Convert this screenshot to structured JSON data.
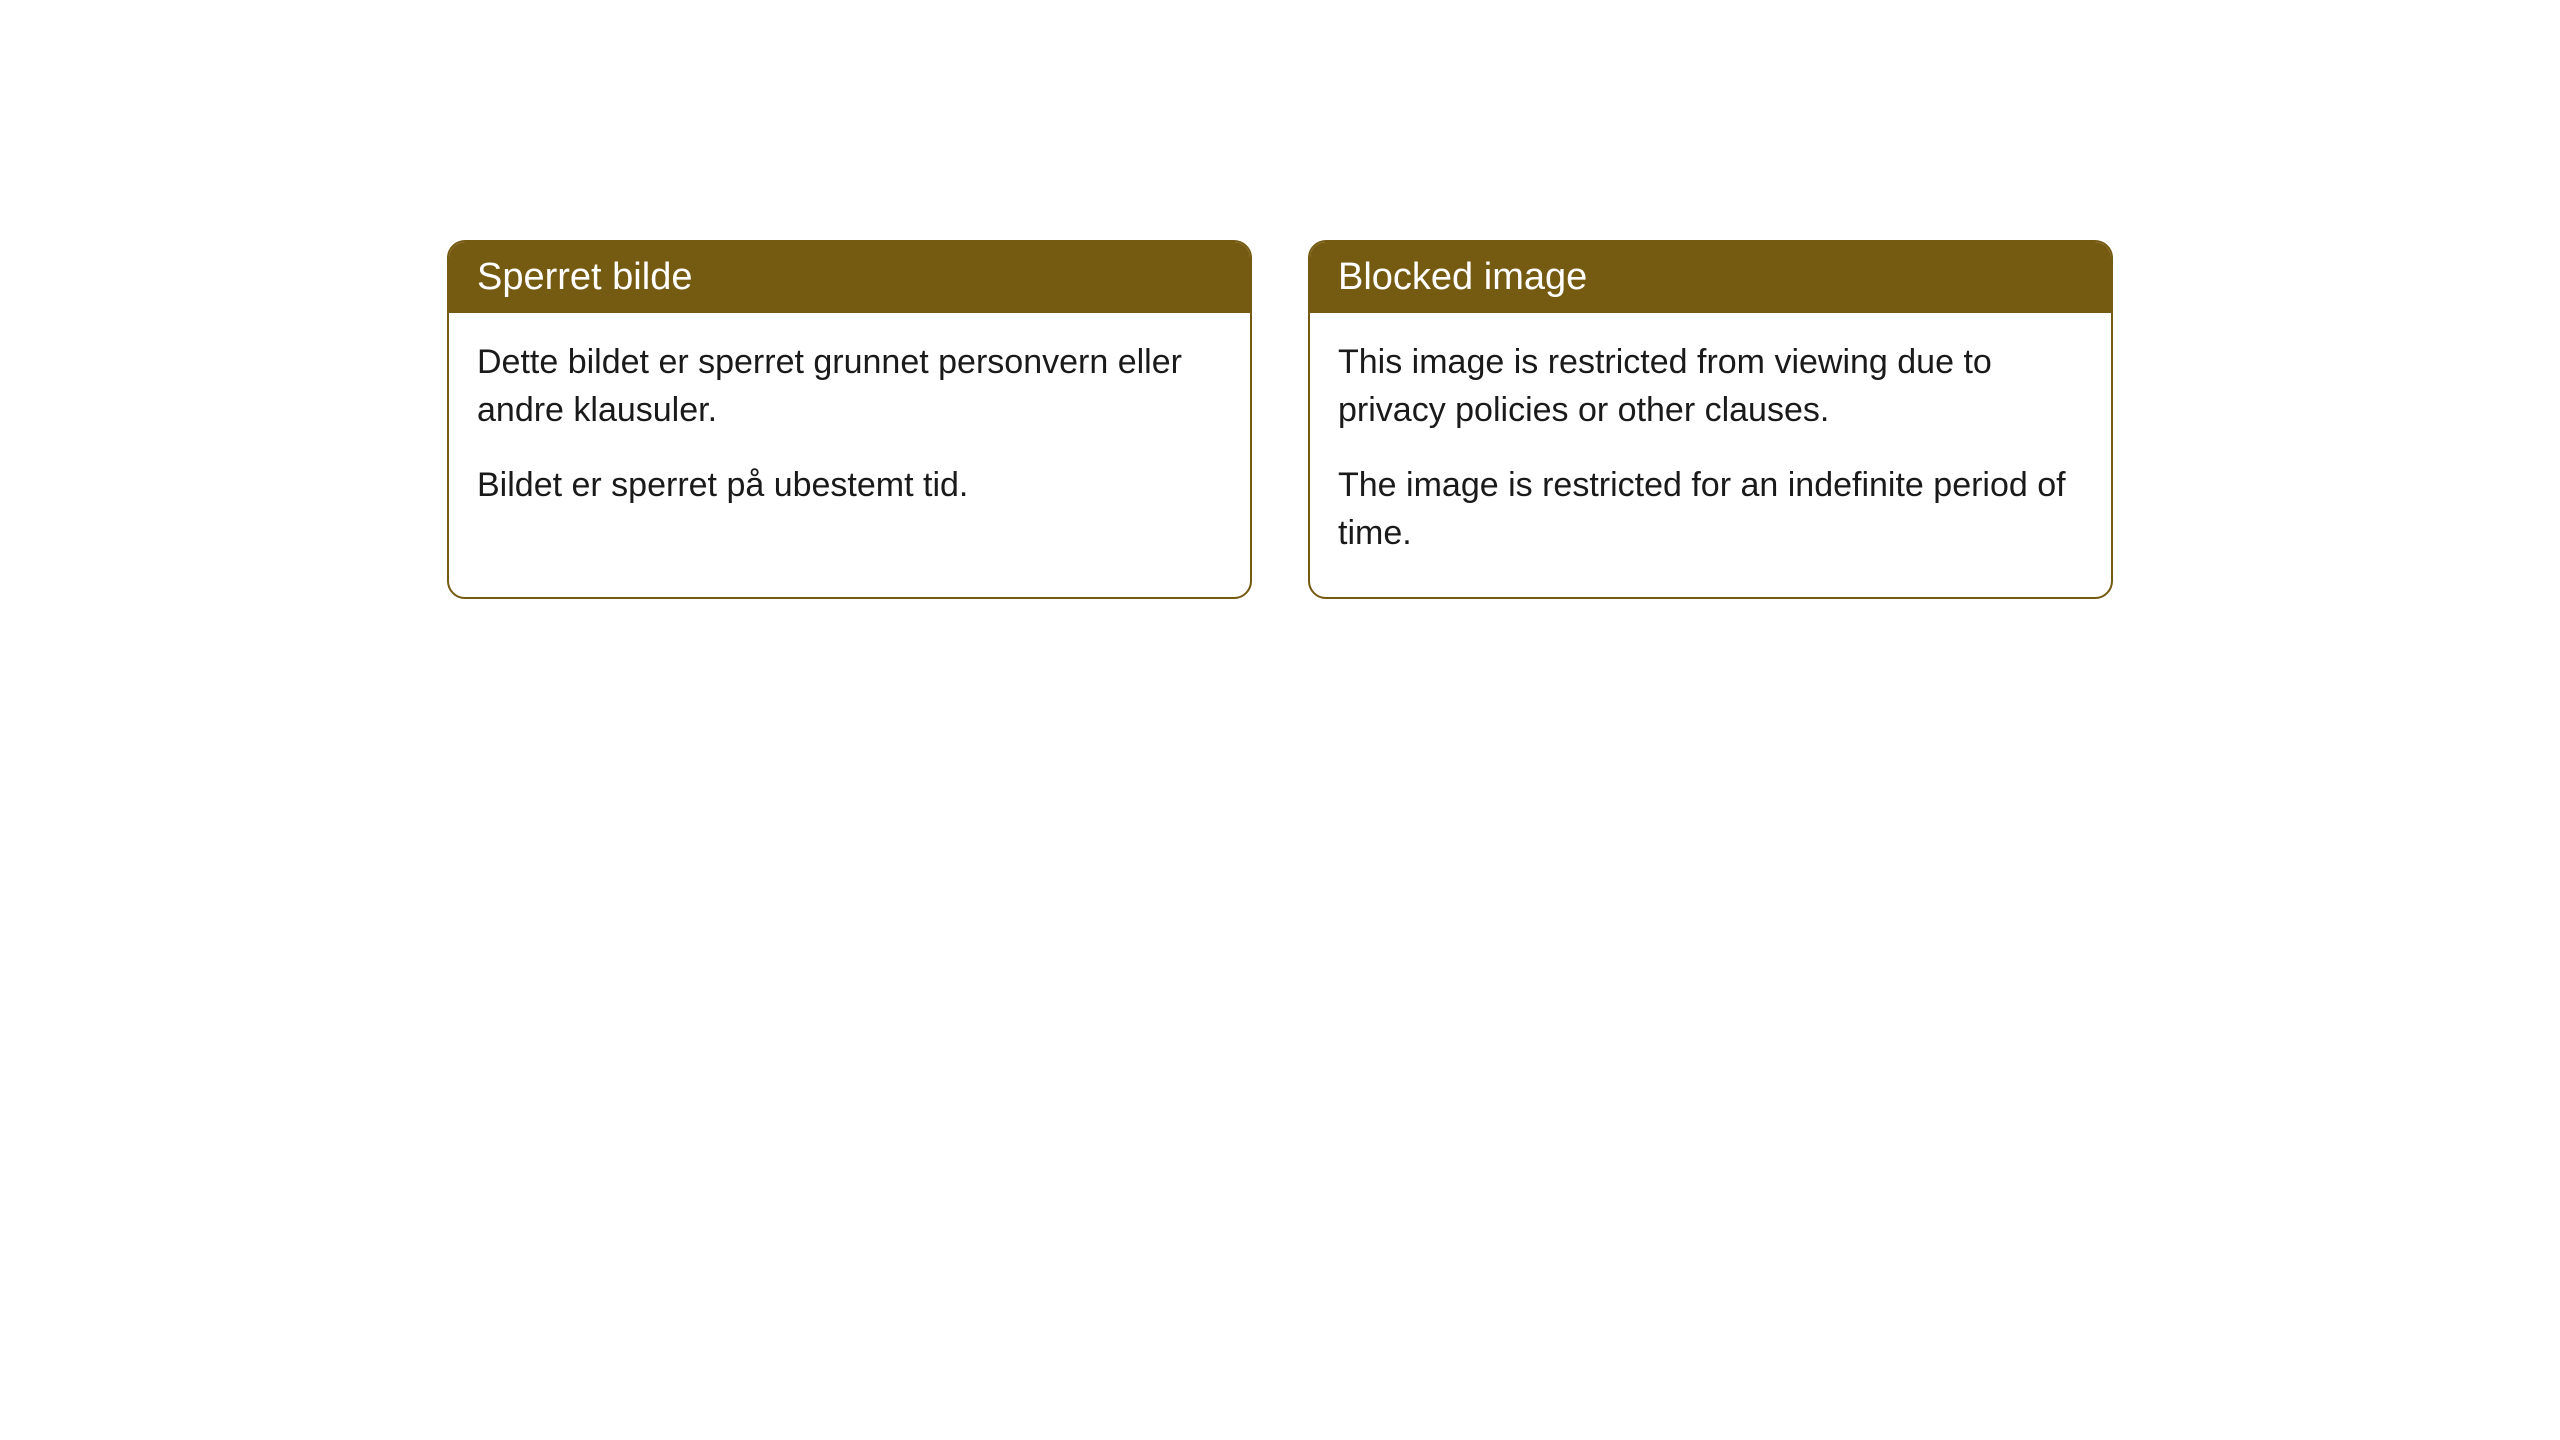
{
  "cards": [
    {
      "title": "Sperret bilde",
      "paragraph1": "Dette bildet er sperret grunnet personvern eller andre klausuler.",
      "paragraph2": "Bildet er sperret på ubestemt tid."
    },
    {
      "title": "Blocked image",
      "paragraph1": "This image is restricted from viewing due to privacy policies or other clauses.",
      "paragraph2": "The image is restricted for an indefinite period of time."
    }
  ],
  "style": {
    "header_bg_color": "#755a11",
    "header_text_color": "#ffffff",
    "border_color": "#755a11",
    "body_bg_color": "#ffffff",
    "body_text_color": "#1a1a1a",
    "border_radius": 18,
    "title_fontsize": 38,
    "body_fontsize": 34
  }
}
